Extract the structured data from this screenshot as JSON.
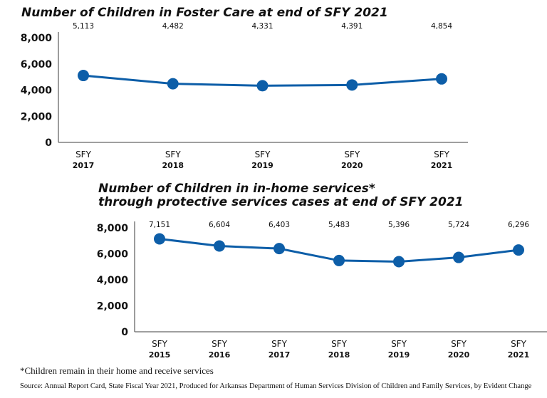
{
  "chart_data": [
    {
      "type": "line",
      "title": "Number of Children in Foster Care at end of SFY 2021",
      "categories": [
        [
          "SFY",
          "2017"
        ],
        [
          "SFY",
          "2018"
        ],
        [
          "SFY",
          "2019"
        ],
        [
          "SFY",
          "2020"
        ],
        [
          "SFY",
          "2021"
        ]
      ],
      "values": [
        5113,
        4482,
        4331,
        4391,
        4854
      ],
      "data_labels": [
        "5,113",
        "4,482",
        "4,331",
        "4,391",
        "4,854"
      ],
      "yticks": [
        "0",
        "2,000",
        "4,000",
        "6,000",
        "8,000"
      ],
      "ylim": [
        0,
        8000
      ],
      "grid": false,
      "color": "#0d5ea8"
    },
    {
      "type": "line",
      "title": "Number of Children in in-home services* through protective services cases at end of SFY 2021",
      "title_lines": [
        "Number of Children in in-home services*",
        "through protective services cases at end of SFY 2021"
      ],
      "categories": [
        [
          "SFY",
          "2015"
        ],
        [
          "SFY",
          "2016"
        ],
        [
          "SFY",
          "2017"
        ],
        [
          "SFY",
          "2018"
        ],
        [
          "SFY",
          "2019"
        ],
        [
          "SFY",
          "2020"
        ],
        [
          "SFY",
          "2021"
        ]
      ],
      "values": [
        7151,
        6604,
        6403,
        5483,
        5396,
        5724,
        6296
      ],
      "data_labels": [
        "7,151",
        "6,604",
        "6,403",
        "5,483",
        "5,396",
        "5,724",
        "6,296"
      ],
      "yticks": [
        "0",
        "2,000",
        "4,000",
        "6,000",
        "8,000"
      ],
      "ylim": [
        0,
        8000
      ],
      "grid": false,
      "color": "#0d5ea8"
    }
  ],
  "footnote": "*Children remain in their home and receive services",
  "source": "Source: Annual Report Card, State Fiscal Year 2021, Produced for Arkansas Department of Human Services Division of Children and Family Services, by Evident Change"
}
